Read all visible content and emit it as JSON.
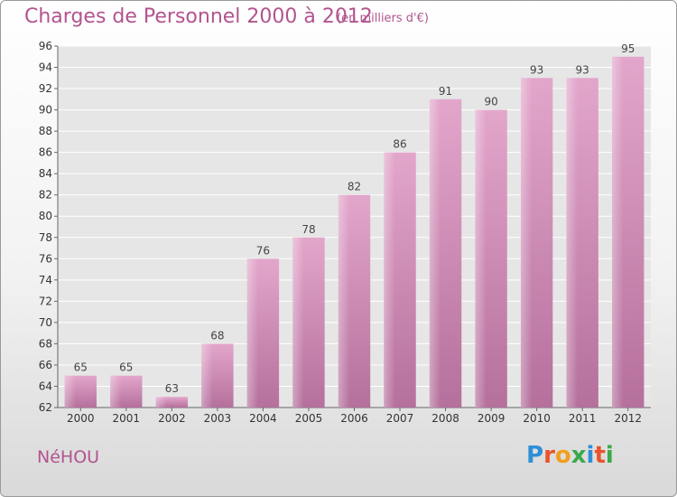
{
  "chart_data": {
    "type": "bar",
    "title": "Charges de Personnel 2000 à 2012",
    "subtitle": "(en milliers d'€)",
    "categories": [
      "2000",
      "2001",
      "2002",
      "2003",
      "2004",
      "2005",
      "2006",
      "2007",
      "2008",
      "2009",
      "2010",
      "2011",
      "2012"
    ],
    "values": [
      65,
      65,
      63,
      68,
      76,
      78,
      82,
      86,
      91,
      90,
      93,
      93,
      95
    ],
    "ylim": [
      62,
      96
    ],
    "ytick_step": 2,
    "xlabel": "",
    "ylabel": "",
    "grid": true,
    "bar_color": "#d98cba"
  },
  "footer": {
    "commune": "NéHOU",
    "brand": [
      "P",
      "r",
      "o",
      "x",
      "i",
      "t",
      "i"
    ],
    "brand_colors": [
      "#2f8fd6",
      "#e8542c",
      "#f0a01e",
      "#3aa94a",
      "#2f8fd6",
      "#e8542c",
      "#3aa94a"
    ]
  }
}
